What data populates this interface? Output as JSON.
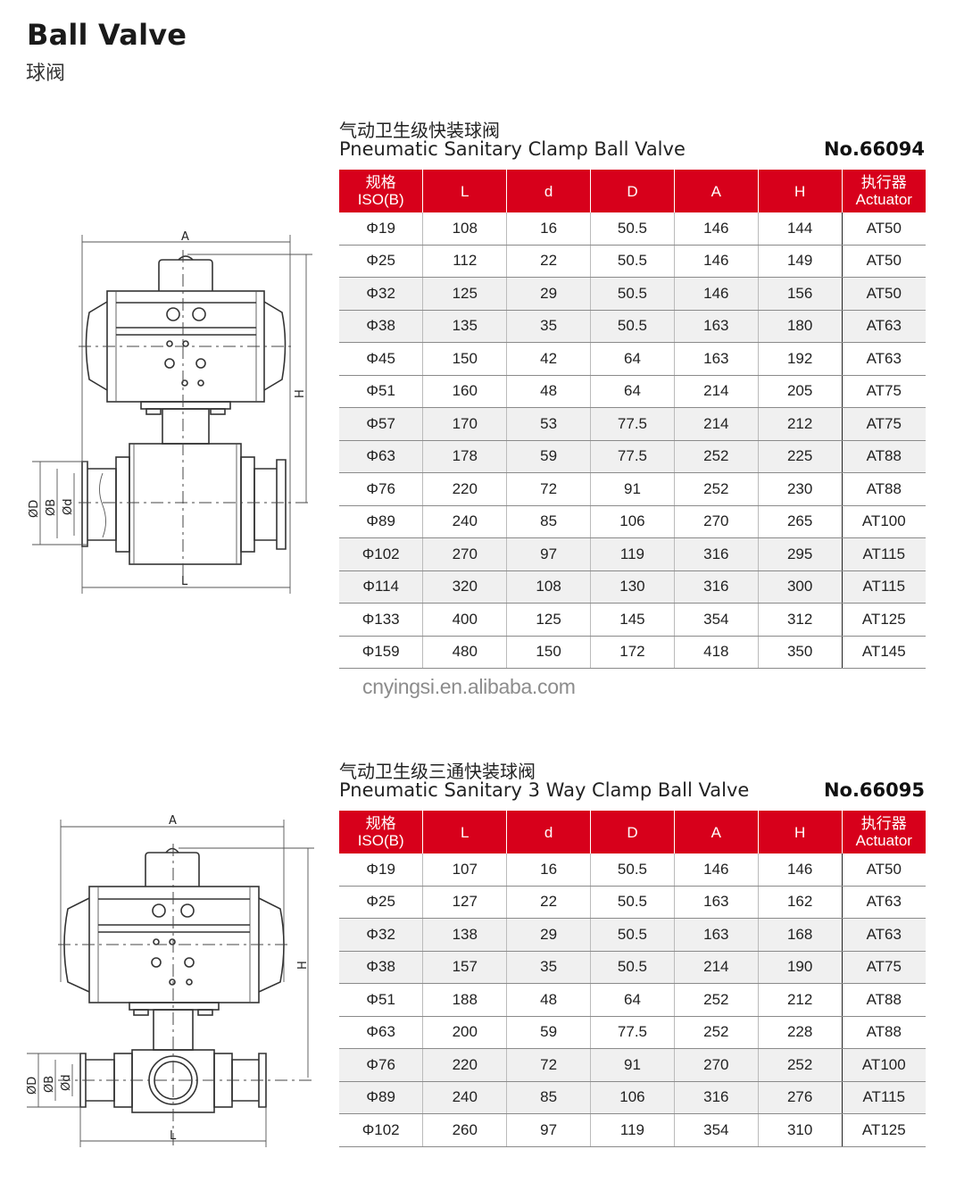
{
  "header": {
    "title": "Ball Valve",
    "subtitle": "球阀"
  },
  "columns": [
    "L",
    "d",
    "D",
    "A",
    "H"
  ],
  "col_first": {
    "cn": "规格",
    "en": "ISO(B)"
  },
  "col_last": {
    "cn": "执行器",
    "en": "Actuator"
  },
  "watermark": "cnyingsi.en.alibaba.com",
  "colors": {
    "header_red": "#d7001b",
    "stripe_grey": "#f0f0f0"
  },
  "sections": [
    {
      "title_cn": "气动卫生级快装球阀",
      "title_en": "Pneumatic Sanitary Clamp Ball Valve",
      "model_no": "No.66094",
      "drawing_labels": {
        "A": "A",
        "H": "H",
        "L": "L",
        "D": "ØD",
        "B": "ØB",
        "d": "Ød"
      },
      "rows": [
        [
          "Φ19",
          "108",
          "16",
          "50.5",
          "146",
          "144",
          "AT50"
        ],
        [
          "Φ25",
          "112",
          "22",
          "50.5",
          "146",
          "149",
          "AT50"
        ],
        [
          "Φ32",
          "125",
          "29",
          "50.5",
          "146",
          "156",
          "AT50"
        ],
        [
          "Φ38",
          "135",
          "35",
          "50.5",
          "163",
          "180",
          "AT63"
        ],
        [
          "Φ45",
          "150",
          "42",
          "64",
          "163",
          "192",
          "AT63"
        ],
        [
          "Φ51",
          "160",
          "48",
          "64",
          "214",
          "205",
          "AT75"
        ],
        [
          "Φ57",
          "170",
          "53",
          "77.5",
          "214",
          "212",
          "AT75"
        ],
        [
          "Φ63",
          "178",
          "59",
          "77.5",
          "252",
          "225",
          "AT88"
        ],
        [
          "Φ76",
          "220",
          "72",
          "91",
          "252",
          "230",
          "AT88"
        ],
        [
          "Φ89",
          "240",
          "85",
          "106",
          "270",
          "265",
          "AT100"
        ],
        [
          "Φ102",
          "270",
          "97",
          "119",
          "316",
          "295",
          "AT115"
        ],
        [
          "Φ114",
          "320",
          "108",
          "130",
          "316",
          "300",
          "AT115"
        ],
        [
          "Φ133",
          "400",
          "125",
          "145",
          "354",
          "312",
          "AT125"
        ],
        [
          "Φ159",
          "480",
          "150",
          "172",
          "418",
          "350",
          "AT145"
        ]
      ]
    },
    {
      "title_cn": "气动卫生级三通快装球阀",
      "title_en": "Pneumatic Sanitary 3 Way Clamp Ball Valve",
      "model_no": "No.66095",
      "drawing_labels": {
        "A": "A",
        "H": "H",
        "L": "L",
        "D": "ØD",
        "B": "ØB",
        "d": "Ød"
      },
      "rows": [
        [
          "Φ19",
          "107",
          "16",
          "50.5",
          "146",
          "146",
          "AT50"
        ],
        [
          "Φ25",
          "127",
          "22",
          "50.5",
          "163",
          "162",
          "AT63"
        ],
        [
          "Φ32",
          "138",
          "29",
          "50.5",
          "163",
          "168",
          "AT63"
        ],
        [
          "Φ38",
          "157",
          "35",
          "50.5",
          "214",
          "190",
          "AT75"
        ],
        [
          "Φ51",
          "188",
          "48",
          "64",
          "252",
          "212",
          "AT88"
        ],
        [
          "Φ63",
          "200",
          "59",
          "77.5",
          "252",
          "228",
          "AT88"
        ],
        [
          "Φ76",
          "220",
          "72",
          "91",
          "270",
          "252",
          "AT100"
        ],
        [
          "Φ89",
          "240",
          "85",
          "106",
          "316",
          "276",
          "AT115"
        ],
        [
          "Φ102",
          "260",
          "97",
          "119",
          "354",
          "310",
          "AT125"
        ]
      ]
    }
  ]
}
